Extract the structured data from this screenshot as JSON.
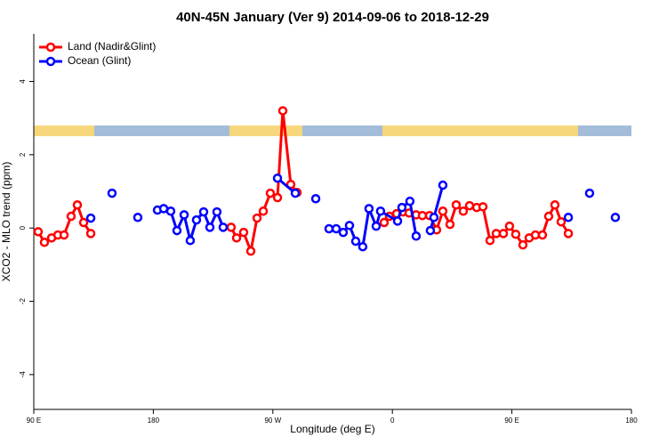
{
  "chart_data": {
    "type": "line",
    "title": "40N-45N January (Ver 9)   2014-09-06 to 2018-12-29",
    "xlabel": "Longitude (deg E)",
    "ylabel": "XCO2 - MLO trend (ppm)",
    "xlim": [
      90,
      540
    ],
    "ylim": [
      -4.95,
      5.3
    ],
    "xticks": [
      {
        "value": 90,
        "label": "90 E"
      },
      180,
      {
        "value": 270,
        "label": "90 W"
      },
      {
        "value": 360,
        "label": "0"
      },
      {
        "value": 450,
        "label": "90 E"
      },
      {
        "value": 540,
        "label": "180"
      }
    ],
    "yticks": [
      -4,
      -2,
      0,
      2,
      4
    ],
    "legend": "top-left",
    "series": [
      {
        "name": "Land (Nadir&Glint)",
        "color": "#ff0000",
        "x": [
          93.3,
          98.0,
          103.4,
          108.1,
          112.8,
          118.1,
          122.8,
          127.5,
          132.9,
          null,
          238.6,
          242.7,
          248.0,
          253.4,
          258.1,
          262.8,
          268.1,
          273.5,
          277.5,
          283.5,
          288.2,
          null,
          353.8,
          357.8,
          363.2,
          367.9,
          372.6,
          377.9,
          382.6,
          388.0,
          393.3,
          398.0,
          403.4,
          408.1,
          413.4,
          418.1,
          423.5,
          428.2,
          433.5,
          438.2,
          443.6,
          448.2,
          452.9,
          458.3,
          463.0,
          467.7,
          473.0,
          477.7,
          482.4,
          487.1,
          492.5
        ],
        "values": [
          -0.1,
          -0.39,
          -0.27,
          -0.19,
          -0.19,
          0.32,
          0.63,
          0.15,
          -0.15,
          null,
          0.02,
          -0.27,
          -0.12,
          -0.63,
          0.27,
          0.46,
          0.95,
          0.83,
          3.2,
          1.19,
          0.97,
          null,
          0.15,
          0.32,
          0.39,
          0.44,
          0.41,
          0.36,
          0.34,
          0.34,
          -0.05,
          0.46,
          0.1,
          0.63,
          0.46,
          0.61,
          0.56,
          0.58,
          -0.34,
          -0.15,
          -0.15,
          0.05,
          -0.17,
          -0.46,
          -0.27,
          -0.19,
          -0.19,
          0.32,
          0.63,
          0.17,
          -0.15
        ]
      },
      {
        "name": "Ocean (Glint)",
        "color": "#0000ff",
        "x": [
          132.9,
          null,
          148.9,
          null,
          168.3,
          null,
          183.1,
          187.8,
          193.1,
          197.8,
          203.2,
          207.8,
          212.5,
          217.9,
          222.6,
          227.9,
          232.6,
          null,
          273.5,
          286.9,
          null,
          302.3,
          null,
          312.3,
          317.7,
          323.0,
          327.7,
          332.4,
          337.7,
          342.4,
          347.8,
          351.1,
          363.9,
          367.2,
          373.2,
          377.9,
          null,
          388.6,
          391.3,
          398.0,
          null,
          492.5,
          null,
          508.5,
          null,
          527.9
        ],
        "values": [
          0.27,
          null,
          0.95,
          null,
          0.29,
          null,
          0.49,
          0.53,
          0.46,
          -0.07,
          0.36,
          -0.34,
          0.22,
          0.44,
          0.02,
          0.44,
          0.02,
          null,
          1.36,
          0.95,
          null,
          0.8,
          null,
          -0.02,
          -0.02,
          -0.12,
          0.07,
          -0.36,
          -0.51,
          0.53,
          0.05,
          0.46,
          0.19,
          0.56,
          0.73,
          -0.22,
          null,
          -0.07,
          0.29,
          1.17,
          null,
          0.29,
          null,
          0.95,
          null,
          0.29
        ]
      }
    ]
  }
}
